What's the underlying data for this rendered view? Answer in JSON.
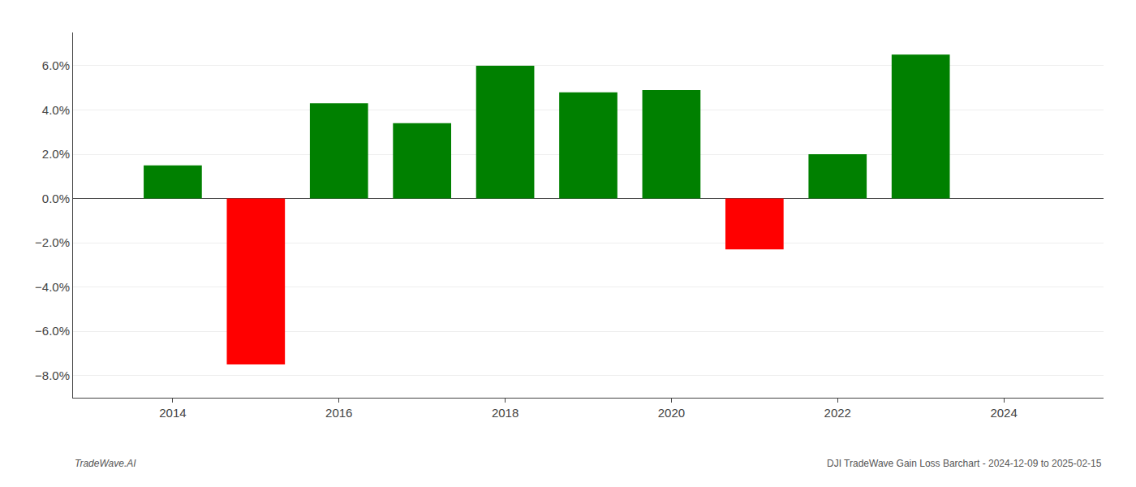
{
  "chart_data": {
    "type": "bar",
    "x": [
      2014,
      2015,
      2016,
      2017,
      2018,
      2019,
      2020,
      2021,
      2022,
      2023
    ],
    "values": [
      1.5,
      -7.5,
      4.3,
      3.4,
      6.0,
      4.8,
      4.9,
      -2.3,
      2.0,
      6.5
    ],
    "colors": [
      "#008000",
      "#ff0000",
      "#008000",
      "#008000",
      "#008000",
      "#008000",
      "#008000",
      "#ff0000",
      "#008000",
      "#008000"
    ],
    "xlim": [
      2012.8,
      2025.2
    ],
    "xticks": [
      2014,
      2016,
      2018,
      2020,
      2022,
      2024
    ],
    "ylim": [
      -9.0,
      7.5
    ],
    "yticks": [
      {
        "value": -8.0,
        "label": "−8.0%"
      },
      {
        "value": -6.0,
        "label": "−6.0%"
      },
      {
        "value": -4.0,
        "label": "−4.0%"
      },
      {
        "value": -2.0,
        "label": "−2.0%"
      },
      {
        "value": 0.0,
        "label": "0.0%"
      },
      {
        "value": 2.0,
        "label": "2.0%"
      },
      {
        "value": 4.0,
        "label": "4.0%"
      },
      {
        "value": 6.0,
        "label": "6.0%"
      }
    ],
    "grid": true,
    "annotations": [
      "TradeWave.AI",
      "DJI TradeWave Gain Loss Barchart - 2024-12-09 to 2025-02-15"
    ]
  }
}
